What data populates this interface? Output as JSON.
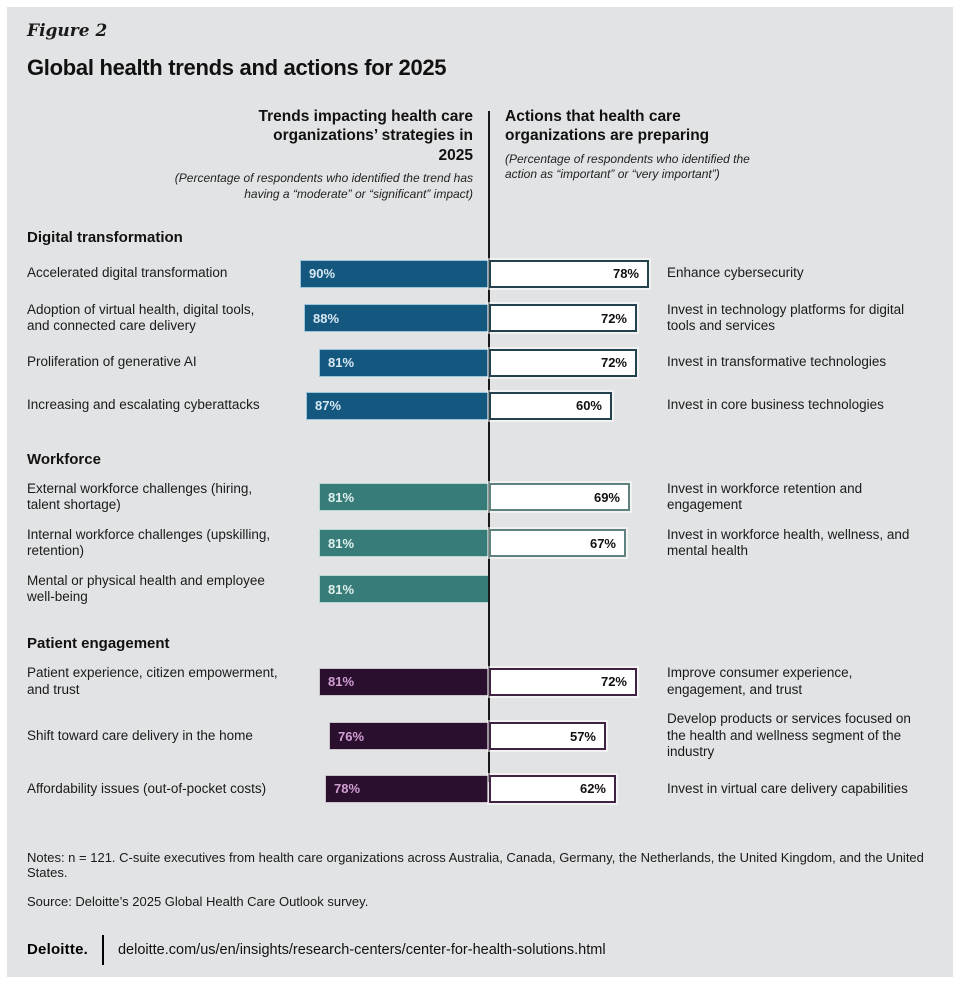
{
  "figure_label": "Figure 2",
  "title": "Global health trends and actions for 2025",
  "left_header": {
    "strong": "Trends",
    "rest": " impacting health care organizations’ strategies in 2025",
    "subnote": "(Percentage of respondents who identified the trend has having a “moderate” or “significant” impact)"
  },
  "right_header": {
    "strong": "Actions",
    "rest": " that health care organizations are preparing",
    "subnote": "(Percentage of respondents who identified the action as “important” or “very important”)"
  },
  "chart_data": {
    "type": "bar",
    "orientation": "horizontal-diverging",
    "unit": "%",
    "axis": {
      "value_min": 0,
      "value_max": 100,
      "gridlines": false,
      "center_axis": true
    },
    "groups": [
      {
        "name": "Digital transformation",
        "colors": {
          "bar": "#15587f",
          "bar_text": "#d6e8f3",
          "bar_border": "#9cc4da",
          "action_border": "#24424e"
        },
        "rows": [
          {
            "trend": "Accelerated digital transformation",
            "trend_value": 90,
            "action_value": 78,
            "action": "Enhance cybersecurity"
          },
          {
            "trend": "Adoption of virtual health, digital tools, and connected care delivery",
            "trend_value": 88,
            "action_value": 72,
            "action": "Invest in technology platforms for digital tools and services"
          },
          {
            "trend": "Proliferation of generative AI",
            "trend_value": 81,
            "action_value": 72,
            "action": "Invest in transformative technologies"
          },
          {
            "trend": "Increasing and escalating cyberattacks",
            "trend_value": 87,
            "action_value": 60,
            "action": "Invest in core business technologies"
          }
        ]
      },
      {
        "name": "Workforce",
        "colors": {
          "bar": "#377c79",
          "bar_text": "#e0f0ed",
          "bar_border": "#b9d8d4",
          "action_border": "#5d827f"
        },
        "rows": [
          {
            "trend": "External workforce challenges (hiring, talent shortage)",
            "trend_value": 81,
            "action_value": 69,
            "action": "Invest in workforce retention and engagement"
          },
          {
            "trend": "Internal workforce challenges (upskilling, retention)",
            "trend_value": 81,
            "action_value": 67,
            "action": "Invest in workforce health, wellness, and mental health"
          },
          {
            "trend": "Mental or physical health and employee well-being",
            "trend_value": 81,
            "action_value": null,
            "action": null
          }
        ]
      },
      {
        "name": "Patient engagement",
        "colors": {
          "bar": "#2a0f2f",
          "bar_text": "#d29fd3",
          "bar_border": "#c9c4cc",
          "action_border": "#402343"
        },
        "rows": [
          {
            "trend": "Patient experience, citizen empowerment, and trust",
            "trend_value": 81,
            "action_value": 72,
            "action": "Improve consumer experience, engagement, and trust"
          },
          {
            "trend": "Shift toward care delivery in the home",
            "trend_value": 76,
            "action_value": 57,
            "action": "Develop products or services focused on the health and wellness segment of the industry"
          },
          {
            "trend": "Affordability issues (out-of-pocket costs)",
            "trend_value": 78,
            "action_value": 62,
            "action": "Invest in virtual care delivery capabilities"
          }
        ]
      }
    ]
  },
  "footer": {
    "notes": "Notes: n = 121. C-suite executives from health care organizations across Australia, Canada, Germany, the Netherlands, the United Kingdom, and the United States.",
    "source": "Source: Deloitte’s 2025 Global Health Care Outlook survey.",
    "logo": "Deloitte.",
    "url": "deloitte.com/us/en/insights/research-centers/center-for-health-solutions.html"
  },
  "colors": {
    "background": "#e2e3e4",
    "frame": "#ffffff",
    "axis_line": "#1a1a1a"
  }
}
